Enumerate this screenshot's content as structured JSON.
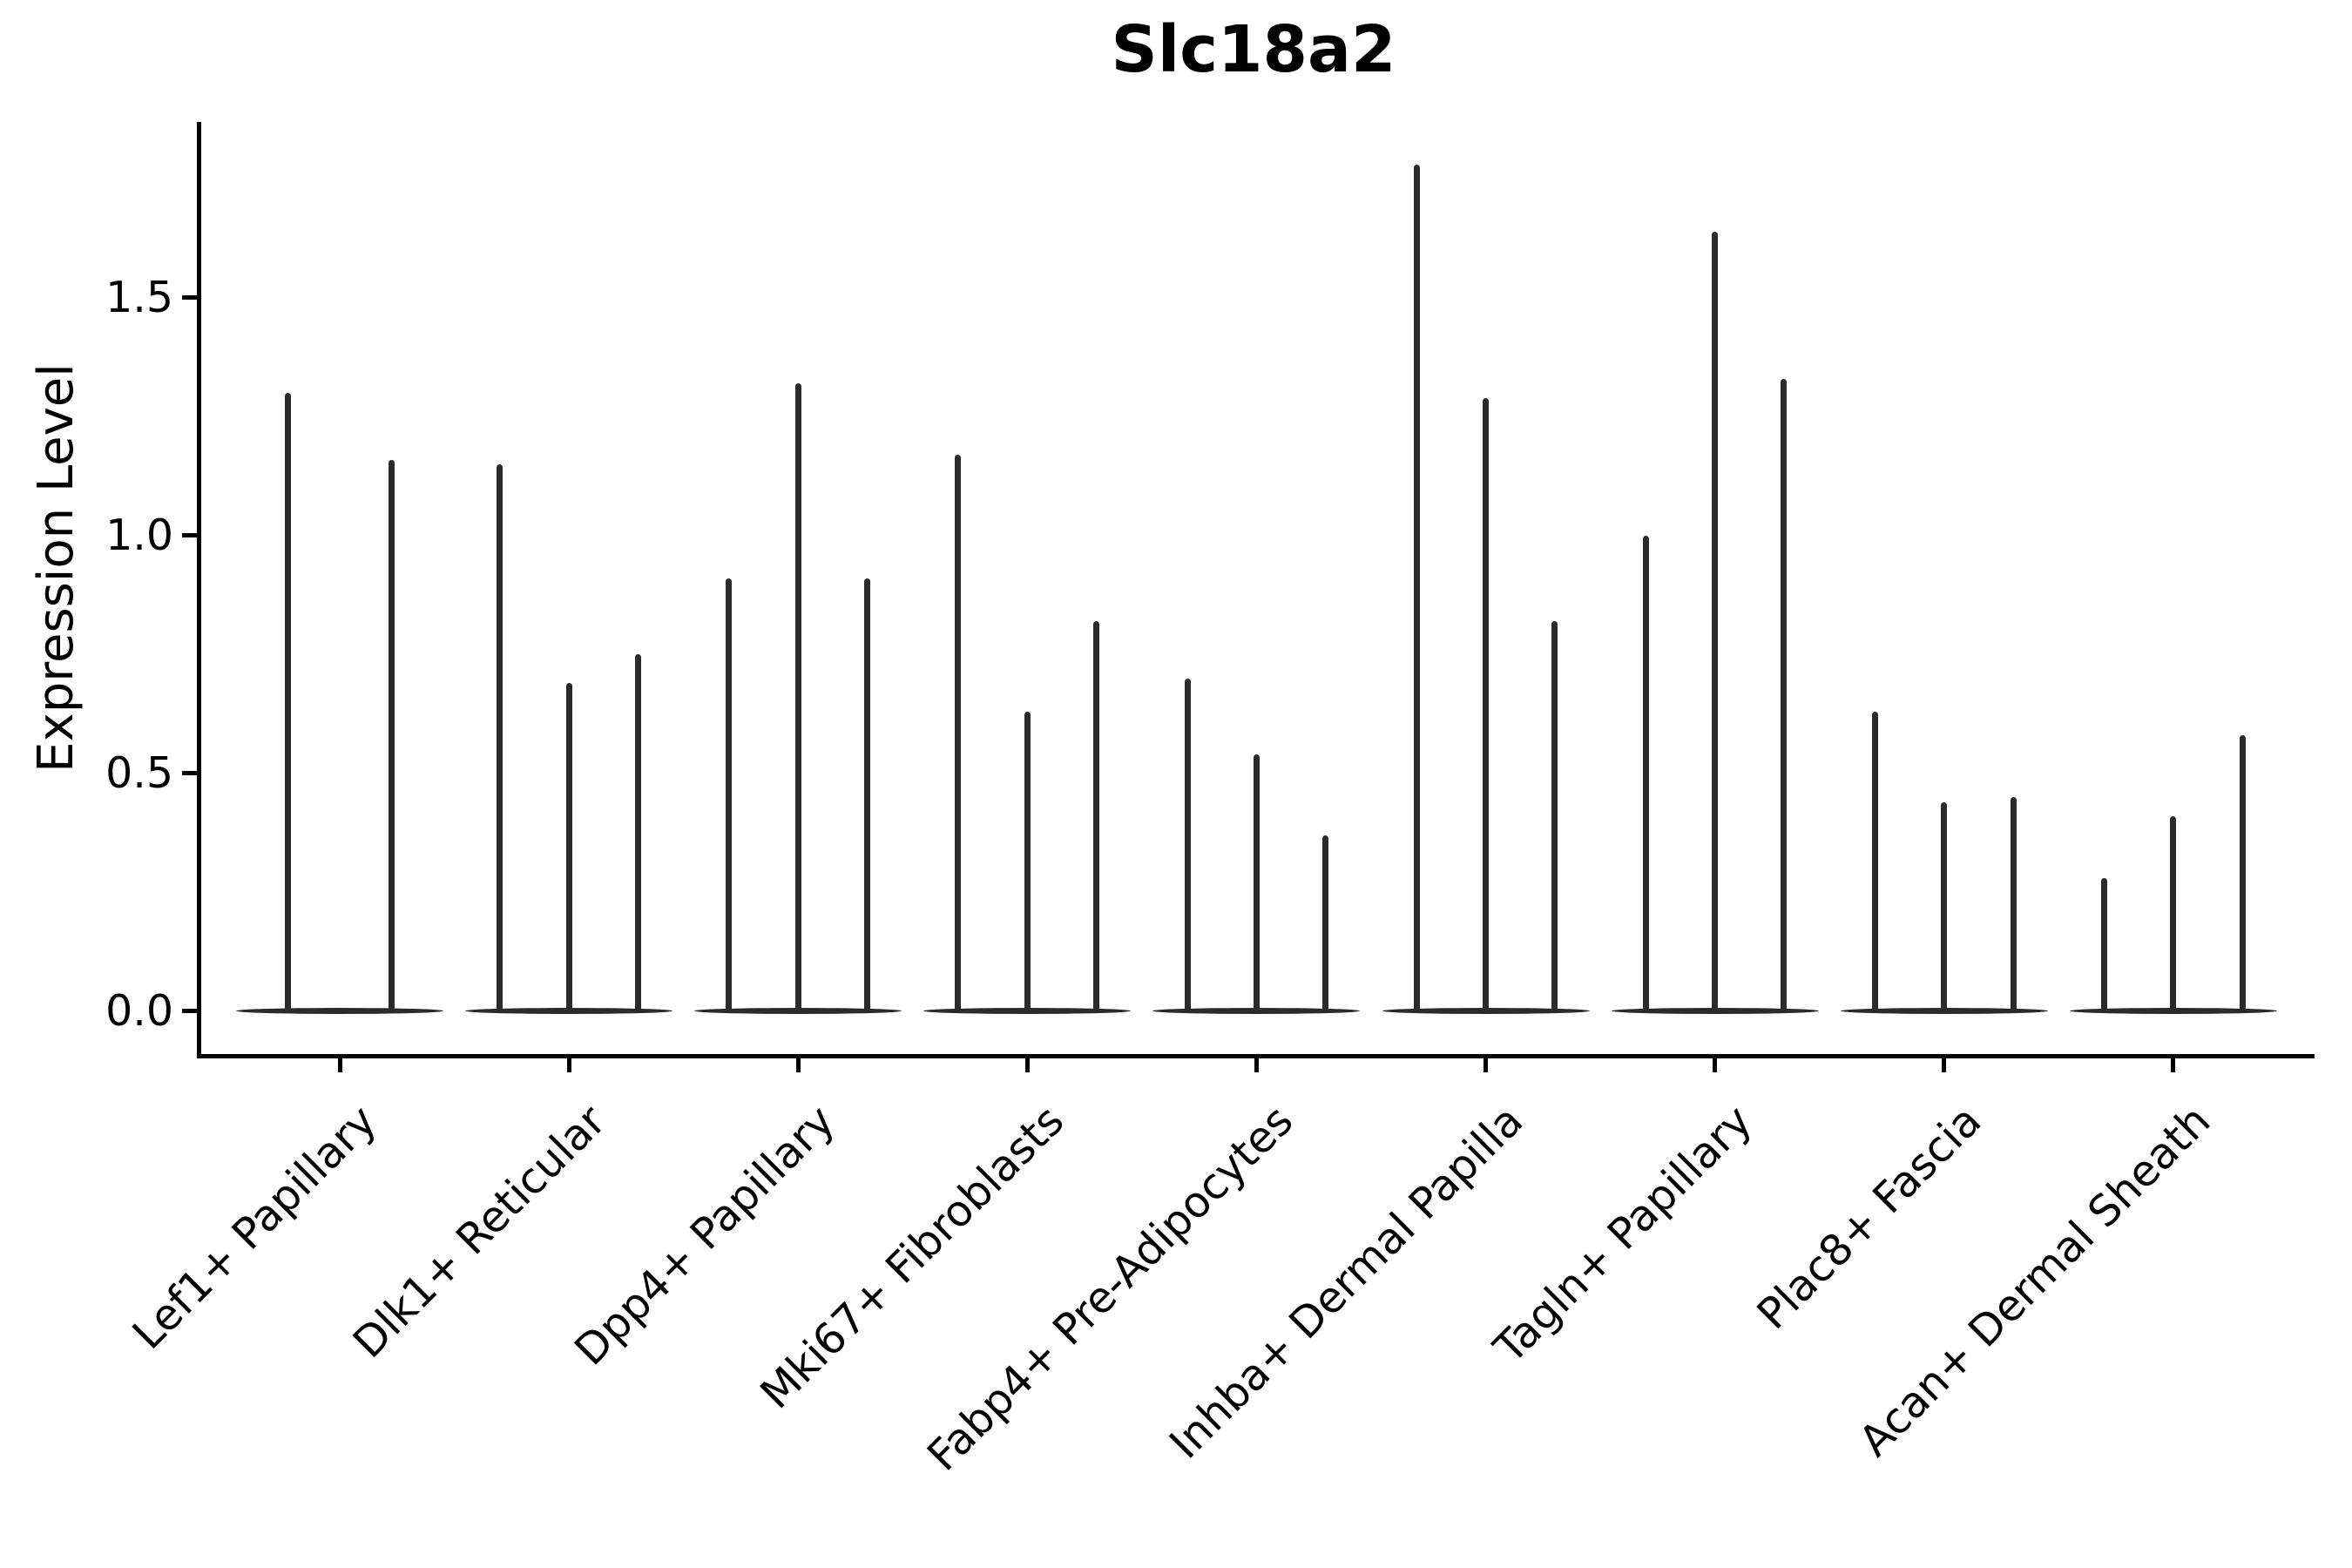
{
  "figure": {
    "title": "Slc18a2",
    "ylabel": "Expression Level"
  },
  "colors": {
    "background": "#ffffff",
    "axis": "#000000",
    "text": "#000000",
    "violin": "#2b2b2b"
  },
  "chart_data": {
    "type": "violin",
    "title": "Slc18a2",
    "xlabel": "",
    "ylabel": "Expression Level",
    "ylim": [
      -0.09,
      1.87
    ],
    "grid": false,
    "legend": "none",
    "yticks": [
      {
        "label": "0.0",
        "value": 0.0
      },
      {
        "label": "0.5",
        "value": 0.5
      },
      {
        "label": "1.0",
        "value": 1.0
      },
      {
        "label": "1.5",
        "value": 1.5
      }
    ],
    "groups": [
      {
        "label": "Lef1+ Papillary",
        "spike_values": [
          1.3,
          1.16
        ]
      },
      {
        "label": "Dlk1+ Reticular",
        "spike_values": [
          1.15,
          0.69,
          0.75
        ]
      },
      {
        "label": "Dpp4+ Papillary",
        "spike_values": [
          0.91,
          1.32,
          0.91
        ]
      },
      {
        "label": "Mki67+ Fibroblasts",
        "spike_values": [
          1.17,
          0.63,
          0.82
        ]
      },
      {
        "label": "Fabp4+ Pre-Adipocytes",
        "spike_values": [
          0.7,
          0.54,
          0.37
        ]
      },
      {
        "label": "Inhba+ Dermal Papilla",
        "spike_values": [
          1.78,
          1.29,
          0.82
        ]
      },
      {
        "label": "Tagln+ Papillary",
        "spike_values": [
          1.0,
          1.64,
          1.33
        ]
      },
      {
        "label": "Plac8+ Fascia",
        "spike_values": [
          0.63,
          0.44,
          0.45
        ]
      },
      {
        "label": "Acan+ Dermal Sheath",
        "spike_values": [
          0.28,
          0.41,
          0.58
        ]
      }
    ]
  }
}
